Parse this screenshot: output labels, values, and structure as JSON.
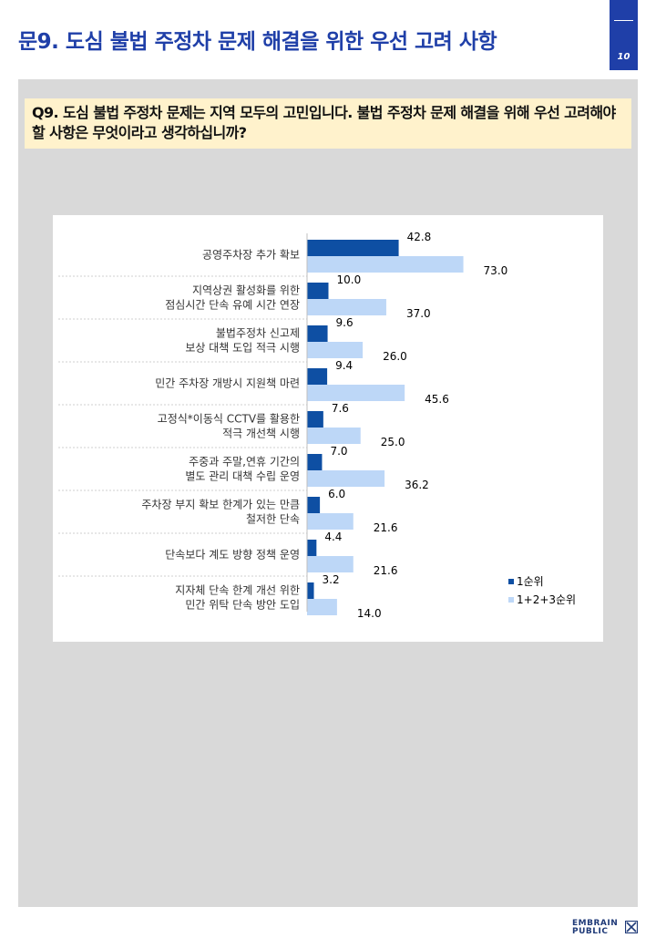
{
  "page": {
    "title": "문9. 도심 불법 주정차 문제 해결을 위한 우선 고려 사항",
    "number": "10"
  },
  "question": "Q9. 도심 불법 주정차 문제는 지역 모두의 고민입니다. 불법 주정차 문제 해결을 위해 우선 고려해야할 사항은 무엇이라고 생각하십니까?",
  "colors": {
    "title": "#1f3fa8",
    "series1": "#0e4fa3",
    "series2": "#bdd7f7",
    "question_bg": "#fff2cc",
    "panel_bg": "#d9d9d9"
  },
  "logo": {
    "line1": "EMBRAIN",
    "line2": "PUBLIC",
    "icon": "embrain-mark-icon"
  },
  "chart_data": {
    "type": "bar",
    "orientation": "horizontal",
    "categories": [
      [
        "공영주차장 추가 확보"
      ],
      [
        "지역상권 활성화를 위한",
        "점심시간 단속 유예 시간 연장"
      ],
      [
        "불법주정차 신고제",
        "보상 대책 도입 적극 시행"
      ],
      [
        "민간 주차장 개방시 지원책 마련"
      ],
      [
        "고정식*이동식 CCTV를 활용한",
        "적극 개선책 시행"
      ],
      [
        "주중과 주말,연휴 기간의",
        "별도 관리 대책 수립 운영"
      ],
      [
        "주차장 부지 확보 한계가 있는 만큼",
        "철저한 단속"
      ],
      [
        "단속보다 계도 방향 정책 운영"
      ],
      [
        "지자체 단속 한계 개선 위한",
        "민간 위탁 단속 방안 도입"
      ]
    ],
    "series": [
      {
        "name": "1순위",
        "values": [
          42.8,
          10.0,
          9.6,
          9.4,
          7.6,
          7.0,
          6.0,
          4.4,
          3.2
        ]
      },
      {
        "name": "1+2+3순위",
        "values": [
          73.0,
          37.0,
          26.0,
          45.6,
          25.0,
          36.2,
          21.6,
          21.6,
          14.0
        ]
      }
    ],
    "value_labels": [
      [
        "42.8",
        "10.0",
        "9.6",
        "9.4",
        "7.6",
        "7.0",
        "6.0",
        "4.4",
        "3.2"
      ],
      [
        "73.0",
        "37.0",
        "26.0",
        "45.6",
        "25.0",
        "36.2",
        "21.6",
        "21.6",
        "14.0"
      ]
    ],
    "xlim": [
      0,
      100
    ],
    "legend_position": "bottom-right",
    "grid": false
  }
}
